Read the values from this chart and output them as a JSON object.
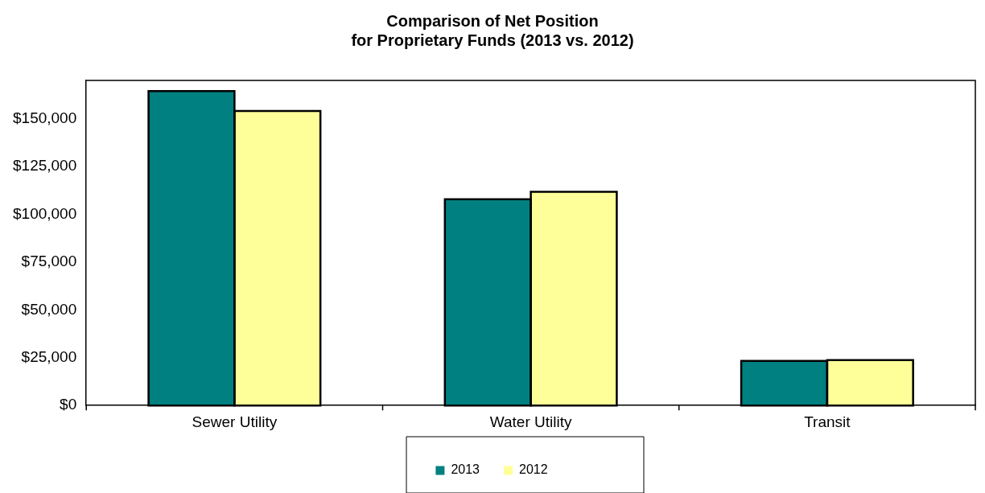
{
  "chart_data": {
    "type": "bar",
    "title": "Comparison of Net Position\nfor Proprietary Funds (2013 vs. 2012)",
    "categories": [
      "Sewer Utility",
      "Water Utility",
      "Transit"
    ],
    "series": [
      {
        "name": "2013",
        "color": "#008080",
        "values": [
          164400,
          107900,
          23300
        ]
      },
      {
        "name": "2012",
        "color": "#ffff99",
        "values": [
          154000,
          111800,
          23700
        ]
      }
    ],
    "ylim": [
      0,
      170000
    ],
    "yticks": [
      {
        "value": 0,
        "label": "$0"
      },
      {
        "value": 25000,
        "label": "$25,000"
      },
      {
        "value": 50000,
        "label": "$50,000"
      },
      {
        "value": 75000,
        "label": "$75,000"
      },
      {
        "value": 100000,
        "label": "$100,000"
      },
      {
        "value": 125000,
        "label": "$125,000"
      },
      {
        "value": 150000,
        "label": "$150,000"
      }
    ],
    "grid": false,
    "legend": "bottom"
  }
}
